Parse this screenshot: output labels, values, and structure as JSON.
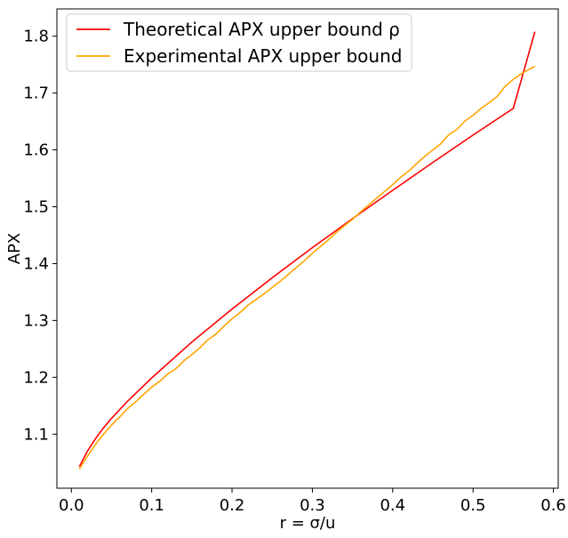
{
  "chart_data": {
    "type": "line",
    "xlabel": "r = σ/u",
    "ylabel": "APX",
    "xlim": [
      -0.018,
      0.606
    ],
    "ylim": [
      1.005,
      1.848
    ],
    "xticks": [
      0.0,
      0.1,
      0.2,
      0.3,
      0.4,
      0.5,
      0.6
    ],
    "xtick_labels": [
      "0.0",
      "0.1",
      "0.2",
      "0.3",
      "0.4",
      "0.5",
      "0.6"
    ],
    "yticks": [
      1.1,
      1.2,
      1.3,
      1.4,
      1.5,
      1.6,
      1.7,
      1.8
    ],
    "ytick_labels": [
      "1.1",
      "1.2",
      "1.3",
      "1.4",
      "1.5",
      "1.6",
      "1.7",
      "1.8"
    ],
    "grid": false,
    "legend_position": "top-left",
    "series": [
      {
        "name": "Theoretical APX upper bound ρ",
        "color": "#ff0000",
        "x": [
          0.01,
          0.02,
          0.03,
          0.04,
          0.05,
          0.07,
          0.1,
          0.15,
          0.2,
          0.25,
          0.3,
          0.35,
          0.4,
          0.45,
          0.5,
          0.55,
          0.577
        ],
        "y": [
          1.043,
          1.07,
          1.092,
          1.111,
          1.128,
          1.158,
          1.199,
          1.262,
          1.32,
          1.375,
          1.428,
          1.479,
          1.529,
          1.578,
          1.626,
          1.673,
          1.808
        ]
      },
      {
        "name": "Experimental APX upper bound",
        "color": "#ffa500",
        "x": [
          0.01,
          0.02,
          0.03,
          0.04,
          0.05,
          0.06,
          0.07,
          0.08,
          0.09,
          0.1,
          0.11,
          0.12,
          0.13,
          0.14,
          0.15,
          0.16,
          0.17,
          0.18,
          0.19,
          0.2,
          0.21,
          0.22,
          0.23,
          0.24,
          0.25,
          0.26,
          0.27,
          0.28,
          0.29,
          0.3,
          0.31,
          0.32,
          0.33,
          0.34,
          0.35,
          0.36,
          0.37,
          0.38,
          0.39,
          0.4,
          0.41,
          0.42,
          0.43,
          0.44,
          0.45,
          0.46,
          0.47,
          0.48,
          0.49,
          0.5,
          0.51,
          0.52,
          0.53,
          0.54,
          0.55,
          0.56,
          0.57,
          0.577
        ],
        "y": [
          1.039,
          1.061,
          1.082,
          1.1,
          1.116,
          1.13,
          1.145,
          1.157,
          1.17,
          1.183,
          1.193,
          1.206,
          1.215,
          1.229,
          1.24,
          1.252,
          1.266,
          1.276,
          1.29,
          1.303,
          1.314,
          1.327,
          1.337,
          1.347,
          1.358,
          1.369,
          1.381,
          1.393,
          1.405,
          1.418,
          1.43,
          1.442,
          1.455,
          1.467,
          1.478,
          1.491,
          1.503,
          1.515,
          1.527,
          1.539,
          1.552,
          1.563,
          1.576,
          1.589,
          1.6,
          1.611,
          1.627,
          1.636,
          1.651,
          1.661,
          1.673,
          1.683,
          1.694,
          1.712,
          1.724,
          1.734,
          1.742,
          1.747
        ]
      }
    ]
  }
}
